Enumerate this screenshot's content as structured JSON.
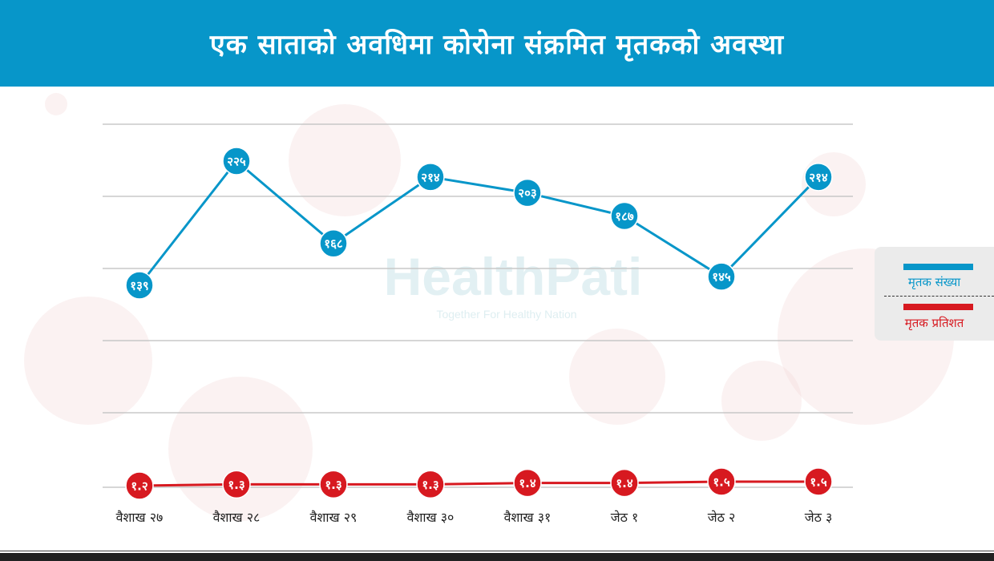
{
  "title": "एक साताको अवधिमा कोरोना संक्रमित मृतकको अवस्था",
  "watermark": {
    "brand": "HealthPati",
    "tagline": "Together For Healthy Nation"
  },
  "legend": {
    "items": [
      {
        "label": "मृतक संख्या",
        "color": "#0796c9"
      },
      {
        "label": "मृतक प्रतिशत",
        "color": "#d71920"
      }
    ]
  },
  "chart_data": {
    "type": "line",
    "categories": [
      "वैशाख २७",
      "वैशाख २८",
      "वैशाख २९",
      "वैशाख ३०",
      "वैशाख ३१",
      "जेठ १",
      "जेठ २",
      "जेठ ३"
    ],
    "grid": true,
    "legend_position": "right",
    "series": [
      {
        "name": "मृतक संख्या",
        "color": "#0796c9",
        "values": [
          139,
          225,
          168,
          214,
          203,
          187,
          145,
          214
        ],
        "labels": [
          "१३९",
          "२२५",
          "१६८",
          "२१४",
          "२०३",
          "१८७",
          "१४५",
          "२१४"
        ]
      },
      {
        "name": "मृतक प्रतिशत",
        "color": "#d71920",
        "values": [
          1.2,
          1.3,
          1.3,
          1.3,
          1.4,
          1.4,
          1.5,
          1.5
        ],
        "labels": [
          "१.२",
          "१.३",
          "१.३",
          "१.३",
          "१.४",
          "१.४",
          "१.५",
          "१.५"
        ]
      }
    ]
  }
}
